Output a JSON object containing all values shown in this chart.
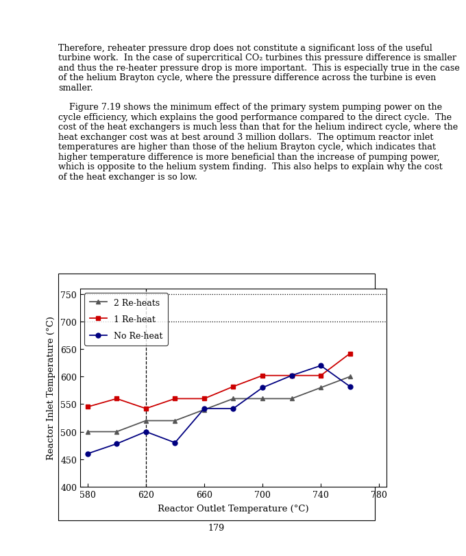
{
  "x_2reheats": [
    580,
    600,
    620,
    640,
    660,
    680,
    700,
    720,
    740,
    760
  ],
  "y_2reheats": [
    500,
    500,
    520,
    520,
    540,
    560,
    560,
    560,
    580,
    600
  ],
  "x_1reheat": [
    580,
    600,
    620,
    640,
    660,
    680,
    700,
    720,
    740,
    760
  ],
  "y_1reheat": [
    545,
    560,
    542,
    560,
    560,
    582,
    602,
    602,
    602,
    642
  ],
  "x_noreheats": [
    580,
    600,
    620,
    640,
    660,
    680,
    700,
    720,
    740,
    760
  ],
  "y_noreheats": [
    460,
    478,
    500,
    480,
    542,
    542,
    580,
    602,
    620,
    582
  ],
  "color_2reheats": "#555555",
  "color_1reheat": "#cc0000",
  "color_noreheats": "#000080",
  "marker_2reheats": "^",
  "marker_1reheat": "s",
  "marker_noreheats": "o",
  "xlabel": "Reactor Outlet Temperature (°C)",
  "ylabel": "Reactor Inlet Temperature (°C)",
  "xlim": [
    575,
    785
  ],
  "ylim": [
    400,
    760
  ],
  "xticks": [
    580,
    620,
    660,
    700,
    740,
    780
  ],
  "yticks": [
    400,
    450,
    500,
    550,
    600,
    650,
    700,
    750
  ],
  "hlines_dotted": [
    750,
    700
  ],
  "vline_dashed": 620,
  "legend_labels": [
    "2 Re-heats",
    "1 Re-heat",
    "No Re-heat"
  ],
  "page_number": "179",
  "paragraph1": "Therefore, reheater pressure drop does not constitute a significant loss of the useful turbine work.  In the case of supercritical CO₂ turbines this pressure difference is smaller and thus the re-heater pressure drop is more important.  This is especially true in the case of the helium Brayton cycle, where the pressure difference across the turbine is even smaller.",
  "paragraph2": "    Figure 7.19 shows the minimum effect of the primary system pumping power on the cycle efficiency, which explains the good performance compared to the direct cycle.  The cost of the heat exchangers is much less than that for the helium indirect cycle, where the heat exchanger cost was at best around 3 million dollars.  The optimum reactor inlet temperatures are higher than those of the helium Brayton cycle, which indicates that higher temperature difference is more beneficial than the increase of pumping power, which is opposite to the helium system finding.  This also helps to explain why the cost of the heat exchanger is so low."
}
